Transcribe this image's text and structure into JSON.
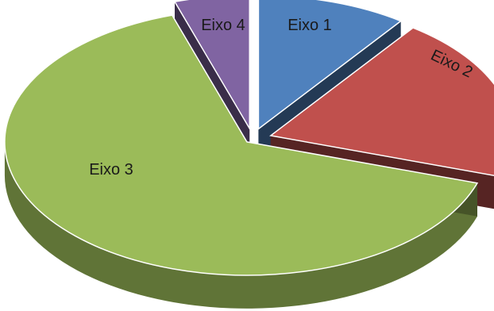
{
  "chart_data": {
    "type": "pie",
    "style": "3d-exploded",
    "categories": [
      "Eixo 1",
      "Eixo 2",
      "Eixo 3",
      "Eixo 4"
    ],
    "values": [
      10,
      20,
      65,
      5
    ],
    "colors": [
      "#4F81BD",
      "#C0504D",
      "#9BBB59",
      "#8064A2"
    ],
    "title": "",
    "legend": "none"
  }
}
